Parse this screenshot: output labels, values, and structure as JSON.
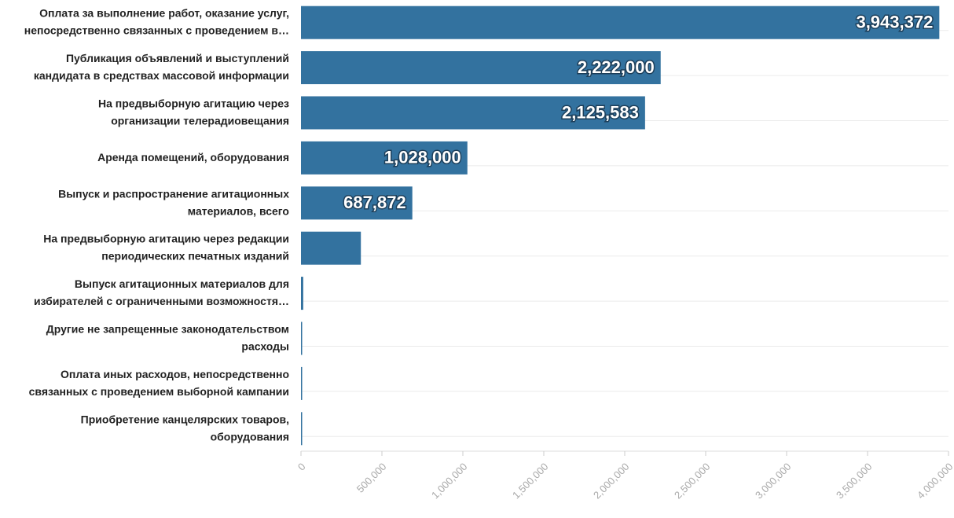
{
  "chart_data": {
    "type": "hbar",
    "categories": [
      [
        "Оплата за выполнение работ, оказание услуг,",
        "непосредственно связанных с проведением в…"
      ],
      [
        "Публикация объявлений и выступлений",
        "кандидата в средствах массовой информации"
      ],
      [
        "На предвыборную агитацию через",
        "организации телерадиовещания"
      ],
      [
        "Аренда помещений, оборудования"
      ],
      [
        "Выпуск и распространение агитационных",
        "материалов, всего"
      ],
      [
        "На предвыборную агитацию через редакции",
        "периодических печатных изданий"
      ],
      [
        "Выпуск агитационных материалов для",
        "избирателей с ограниченными возможностя…"
      ],
      [
        "Другие не запрещенные законодательством",
        "расходы"
      ],
      [
        "Оплата иных расходов, непосредственно",
        "связанных с проведением выборной кампании"
      ],
      [
        "Приобретение канцелярских товаров,",
        "оборудования"
      ]
    ],
    "values": [
      3943372,
      2222000,
      2125583,
      1028000,
      687872,
      370000,
      14000,
      5000,
      3000,
      2000
    ],
    "value_labels": [
      "3,943,372",
      "2,222,000",
      "2,125,583",
      "1,028,000",
      "687,872",
      null,
      null,
      null,
      null,
      null
    ],
    "color": "#33729f",
    "xlim": [
      0,
      4000000
    ],
    "xticks": [
      0,
      {
        "value": 500000,
        "label": "500,000"
      },
      {
        "value": 1000000,
        "label": "1,000,000"
      },
      {
        "value": 1500000,
        "label": "1,500,000"
      },
      {
        "value": 2000000,
        "label": "2,000,000"
      },
      {
        "value": 2500000,
        "label": "2,500,000"
      },
      {
        "value": 3000000,
        "label": "3,000,000"
      },
      {
        "value": 3500000,
        "label": "3,500,000"
      },
      {
        "value": 4000000,
        "label": "4,000,000"
      }
    ],
    "grid": true
  }
}
